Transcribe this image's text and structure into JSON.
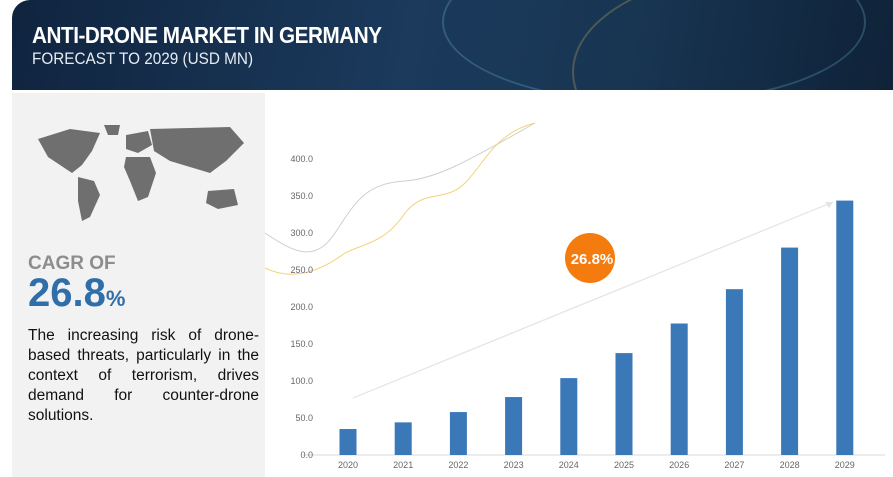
{
  "header": {
    "title": "ANTI-DRONE MARKET IN GERMANY",
    "subtitle": "FORECAST TO 2029 (USD MN)"
  },
  "left_panel": {
    "cagr_label": "CAGR OF",
    "cagr_value": "26.8",
    "cagr_unit": "%",
    "description": "The increasing risk of drone-based threats, particularly in the context of terrorism, drives demand for counter-drone solutions."
  },
  "colors": {
    "bar": "#3a78b8",
    "badge": "#f47c0f",
    "header": "#13294a",
    "accent_text": "#2f6ea8"
  },
  "chart_data": {
    "type": "bar",
    "categories": [
      "2020",
      "2021",
      "2022",
      "2023",
      "2024",
      "2025",
      "2026",
      "2027",
      "2028",
      "2029"
    ],
    "values": [
      35.1,
      44.1,
      58.0,
      78.3,
      103.9,
      137.7,
      177.7,
      224.1,
      280.3,
      343.8
    ],
    "ylim": [
      0,
      400
    ],
    "yticks": [
      "0.0",
      "50.0",
      "100.0",
      "150.0",
      "200.0",
      "250.0",
      "300.0",
      "350.0",
      "400.0"
    ],
    "grid": false,
    "annotation": "26.8%"
  }
}
